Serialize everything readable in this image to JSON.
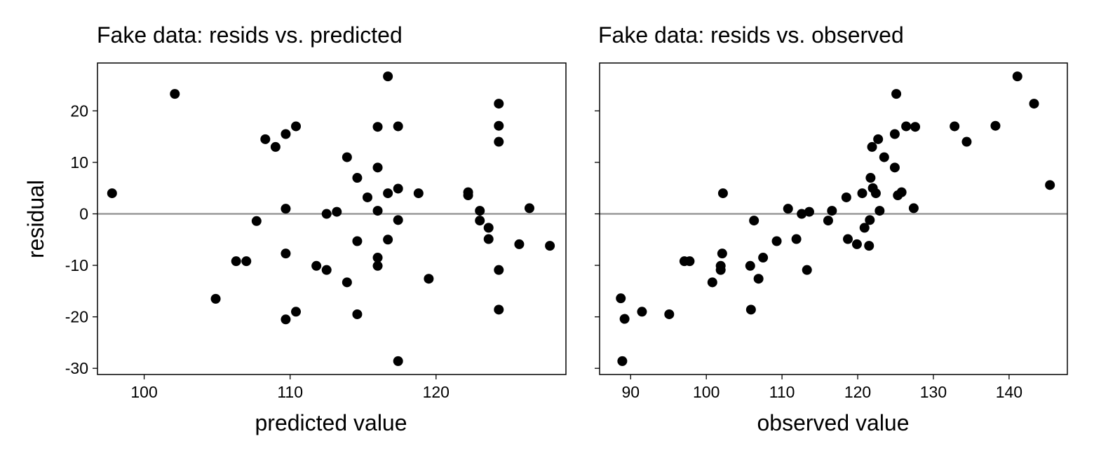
{
  "chart_data": [
    {
      "type": "scatter",
      "title": "Fake data: resids vs. predicted",
      "xlabel": "predicted value",
      "ylabel": "residual",
      "xlim": [
        96.8,
        128.9
      ],
      "ylim": [
        -31.2,
        29.3
      ],
      "xticks": [
        100,
        110,
        120
      ],
      "yticks": [
        -30,
        -20,
        -10,
        0,
        10,
        20
      ],
      "show_ytick_labels": true,
      "reference_line_y": 0,
      "grid": false,
      "legend": "none",
      "colors": {
        "points": "#000000",
        "reference_line": "#999999"
      },
      "x": [
        97.8,
        102.1,
        104.9,
        106.3,
        107.0,
        107.7,
        108.3,
        109.0,
        109.7,
        109.7,
        109.7,
        109.7,
        110.4,
        110.4,
        111.8,
        112.5,
        112.5,
        113.2,
        113.9,
        113.9,
        114.6,
        114.6,
        114.6,
        115.3,
        116.0,
        116.0,
        116.0,
        116.0,
        116.0,
        116.7,
        116.7,
        116.7,
        117.4,
        117.4,
        117.4,
        117.4,
        118.8,
        119.5,
        122.2,
        122.2,
        123.0,
        123.0,
        123.6,
        123.6,
        124.3,
        124.3,
        124.3,
        124.3,
        124.3,
        125.7,
        126.4,
        127.8
      ],
      "y": [
        4.0,
        23.3,
        -16.5,
        -9.2,
        -9.2,
        -1.4,
        14.5,
        13.0,
        15.5,
        1.0,
        -7.7,
        -20.5,
        17.0,
        -19.0,
        -10.1,
        0.0,
        -10.9,
        0.4,
        11.0,
        -13.3,
        7.0,
        -5.3,
        -19.5,
        3.2,
        16.9,
        9.0,
        0.6,
        -8.5,
        -10.1,
        26.7,
        4.0,
        -5.0,
        17.0,
        4.9,
        -1.2,
        -28.6,
        4.0,
        -12.6,
        4.2,
        3.6,
        0.6,
        -1.3,
        -2.7,
        -4.9,
        21.4,
        17.1,
        14.0,
        -10.9,
        -18.6,
        -5.9,
        1.1,
        -6.2
      ]
    },
    {
      "type": "scatter",
      "title": "Fake data: resids vs. observed",
      "xlabel": "observed value",
      "ylabel": "",
      "xlim": [
        85.9,
        147.7
      ],
      "ylim": [
        -31.2,
        29.3
      ],
      "xticks": [
        90,
        100,
        110,
        120,
        130,
        140
      ],
      "yticks": [
        -30,
        -20,
        -10,
        0,
        10,
        20
      ],
      "show_ytick_labels": false,
      "reference_line_y": 0,
      "grid": false,
      "legend": "none",
      "colors": {
        "points": "#000000",
        "reference_line": "#999999"
      },
      "x": [
        88.7,
        89.2,
        88.9,
        91.5,
        95.1,
        97.1,
        97.8,
        100.8,
        101.9,
        101.9,
        102.2,
        102.1,
        105.8,
        105.9,
        106.3,
        106.9,
        107.5,
        109.3,
        110.8,
        111.9,
        112.6,
        113.3,
        113.6,
        116.1,
        116.6,
        118.5,
        118.7,
        119.9,
        120.6,
        120.9,
        121.5,
        121.6,
        121.7,
        121.9,
        122.0,
        122.4,
        122.7,
        122.9,
        123.5,
        124.9,
        124.9,
        125.1,
        125.3,
        125.8,
        126.4,
        127.4,
        127.6,
        132.8,
        134.4,
        138.2,
        141.1,
        143.3,
        145.4
      ],
      "y": [
        -16.4,
        -20.4,
        -28.6,
        -19.0,
        -19.5,
        -9.2,
        -9.2,
        -13.3,
        -10.9,
        -10.1,
        4.0,
        -7.7,
        -10.1,
        -18.6,
        -1.3,
        -12.6,
        -8.5,
        -5.3,
        1.0,
        -4.9,
        0.0,
        -10.9,
        0.4,
        -1.3,
        0.6,
        3.2,
        -4.9,
        -5.9,
        4.0,
        -2.7,
        -6.2,
        -1.2,
        7.0,
        13.0,
        5.0,
        4.0,
        14.5,
        0.6,
        11.0,
        9.0,
        15.5,
        23.3,
        3.6,
        4.2,
        17.0,
        1.1,
        16.9,
        17.0,
        14.0,
        17.1,
        26.7,
        21.4,
        5.6
      ]
    }
  ]
}
